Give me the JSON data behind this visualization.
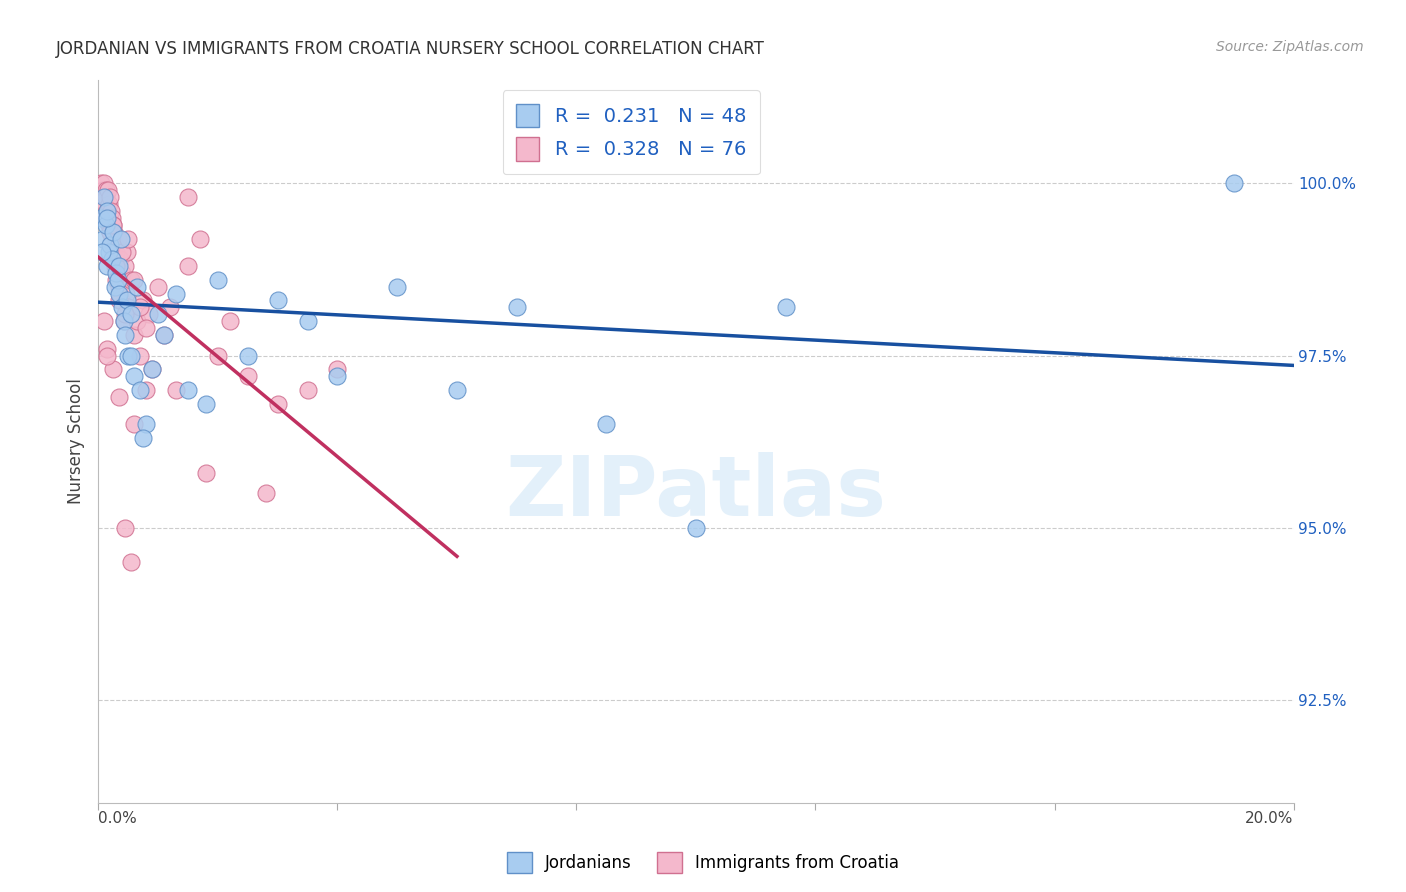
{
  "title": "JORDANIAN VS IMMIGRANTS FROM CROATIA NURSERY SCHOOL CORRELATION CHART",
  "source": "Source: ZipAtlas.com",
  "ylabel": "Nursery School",
  "yticks": [
    92.5,
    95.0,
    97.5,
    100.0
  ],
  "ytick_labels": [
    "92.5%",
    "95.0%",
    "97.5%",
    "100.0%"
  ],
  "xlim": [
    0.0,
    20.0
  ],
  "ylim": [
    91.0,
    101.5
  ],
  "blue_R": 0.231,
  "blue_N": 48,
  "pink_R": 0.328,
  "pink_N": 76,
  "blue_color": "#A8CCF0",
  "pink_color": "#F4B8CC",
  "blue_edge": "#6090C8",
  "pink_edge": "#D07090",
  "trend_blue": "#1850A0",
  "trend_pink": "#C03060",
  "legend_blue_label": "Jordanians",
  "legend_pink_label": "Immigrants from Croatia",
  "blue_scatter_x": [
    0.05,
    0.08,
    0.1,
    0.12,
    0.15,
    0.15,
    0.18,
    0.2,
    0.22,
    0.25,
    0.28,
    0.3,
    0.32,
    0.35,
    0.38,
    0.4,
    0.42,
    0.45,
    0.48,
    0.5,
    0.55,
    0.6,
    0.65,
    0.7,
    0.8,
    0.9,
    1.0,
    1.1,
    1.3,
    1.5,
    1.8,
    2.0,
    2.5,
    3.0,
    3.5,
    4.0,
    5.0,
    6.0,
    7.0,
    8.5,
    10.0,
    11.5,
    0.06,
    0.14,
    0.35,
    0.55,
    0.75,
    19.0
  ],
  "blue_scatter_y": [
    99.5,
    99.2,
    99.8,
    99.4,
    99.6,
    98.8,
    99.0,
    99.1,
    98.9,
    99.3,
    98.5,
    98.7,
    98.6,
    98.4,
    99.2,
    98.2,
    98.0,
    97.8,
    98.3,
    97.5,
    98.1,
    97.2,
    98.5,
    97.0,
    96.5,
    97.3,
    98.1,
    97.8,
    98.4,
    97.0,
    96.8,
    98.6,
    97.5,
    98.3,
    98.0,
    97.2,
    98.5,
    97.0,
    98.2,
    96.5,
    95.0,
    98.2,
    99.0,
    99.5,
    98.8,
    97.5,
    96.3,
    100.0
  ],
  "pink_scatter_x": [
    0.05,
    0.07,
    0.08,
    0.1,
    0.11,
    0.12,
    0.13,
    0.14,
    0.15,
    0.16,
    0.17,
    0.18,
    0.19,
    0.2,
    0.21,
    0.22,
    0.23,
    0.24,
    0.25,
    0.26,
    0.27,
    0.28,
    0.29,
    0.3,
    0.32,
    0.34,
    0.36,
    0.38,
    0.4,
    0.42,
    0.44,
    0.46,
    0.48,
    0.5,
    0.55,
    0.6,
    0.65,
    0.7,
    0.75,
    0.8,
    0.85,
    0.9,
    1.0,
    1.1,
    1.2,
    1.3,
    1.5,
    1.7,
    2.0,
    2.5,
    3.0,
    4.0,
    0.1,
    0.2,
    0.3,
    0.4,
    0.5,
    0.6,
    0.7,
    0.8,
    0.25,
    0.35,
    0.45,
    1.5,
    2.2,
    3.5,
    0.15,
    0.25,
    0.35,
    0.6,
    1.8,
    2.8,
    0.1,
    0.15,
    0.45,
    0.55
  ],
  "pink_scatter_y": [
    100.0,
    99.9,
    99.8,
    100.0,
    99.7,
    99.9,
    99.8,
    99.6,
    99.5,
    99.9,
    99.7,
    99.4,
    99.8,
    99.3,
    99.6,
    99.5,
    99.2,
    99.4,
    99.0,
    99.3,
    99.1,
    98.8,
    99.0,
    98.6,
    99.2,
    98.5,
    98.9,
    98.3,
    98.7,
    98.0,
    98.8,
    98.4,
    99.0,
    98.2,
    98.6,
    97.8,
    98.0,
    97.5,
    98.3,
    97.0,
    98.1,
    97.3,
    98.5,
    97.8,
    98.2,
    97.0,
    98.8,
    99.2,
    97.5,
    97.2,
    96.8,
    97.3,
    99.5,
    99.3,
    98.8,
    99.0,
    99.2,
    98.6,
    98.2,
    97.9,
    99.4,
    98.3,
    98.1,
    99.8,
    98.0,
    97.0,
    97.6,
    97.3,
    96.9,
    96.5,
    95.8,
    95.5,
    98.0,
    97.5,
    95.0,
    94.5
  ]
}
